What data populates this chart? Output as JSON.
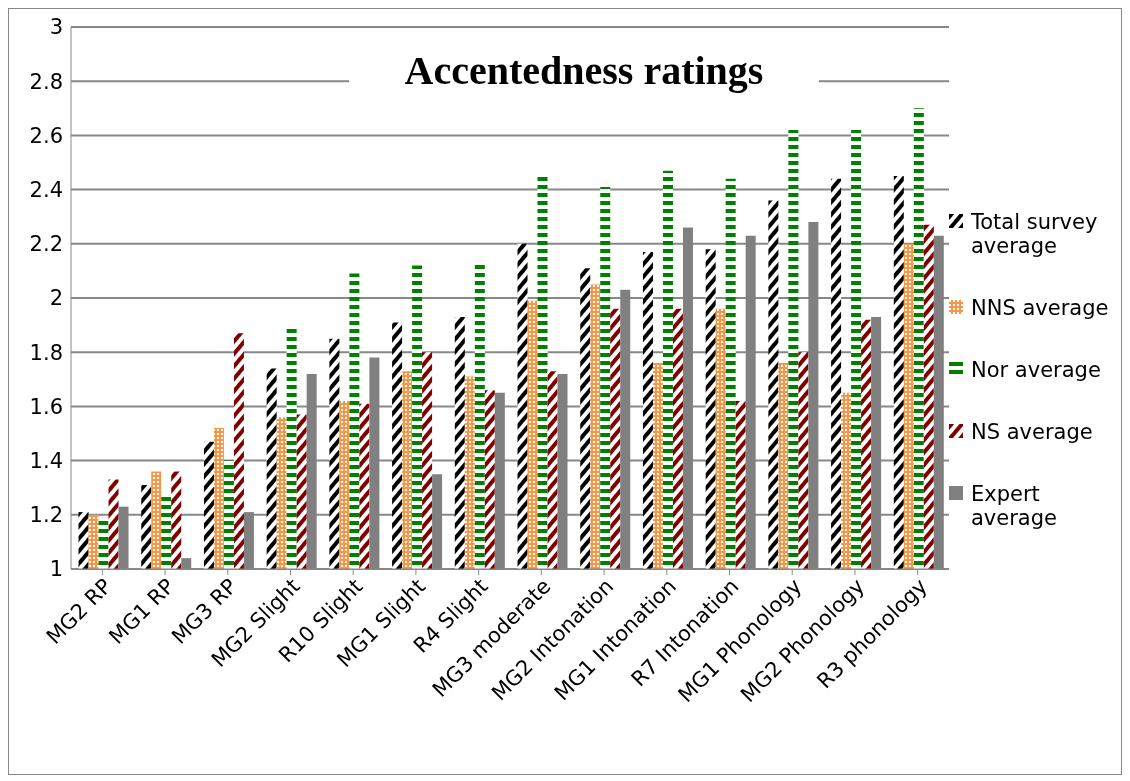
{
  "chart_data": {
    "type": "bar",
    "title": "Accentedness ratings",
    "categories": [
      "MG2 RP",
      "MG1 RP",
      "MG3 RP",
      "MG2 Slight",
      "R10 Slight",
      "MG1 Slight",
      "R4 Slight",
      "MG3 moderate",
      "MG2 Intonation",
      "MG1 Intonation",
      "R7 Intonation",
      "MG1 Phonology",
      "MG2 Phonology",
      "R3 phonology"
    ],
    "series": [
      {
        "name": "Total survey average",
        "color": "#000000",
        "values": [
          1.21,
          1.31,
          1.47,
          1.74,
          1.85,
          1.91,
          1.93,
          2.2,
          2.11,
          2.17,
          2.18,
          2.36,
          2.44,
          2.45
        ]
      },
      {
        "name": "NNS average",
        "color": "#f79646",
        "values": [
          1.2,
          1.36,
          1.52,
          1.56,
          1.62,
          1.73,
          1.71,
          1.99,
          2.05,
          1.76,
          1.96,
          1.76,
          1.65,
          2.2
        ]
      },
      {
        "name": "Nor average",
        "color": "#008000",
        "values": [
          1.19,
          1.27,
          1.4,
          1.9,
          2.09,
          2.12,
          2.13,
          2.46,
          2.41,
          2.47,
          2.44,
          2.62,
          2.62,
          2.7
        ]
      },
      {
        "name": "NS average",
        "color": "#800000",
        "values": [
          1.33,
          1.36,
          1.87,
          1.57,
          1.61,
          1.8,
          1.66,
          1.73,
          1.96,
          1.96,
          1.62,
          1.8,
          1.92,
          2.27
        ]
      },
      {
        "name": "Expert average",
        "color": "#808080",
        "values": [
          1.23,
          1.04,
          1.21,
          1.72,
          1.78,
          1.35,
          1.65,
          1.72,
          2.03,
          2.26,
          2.23,
          2.28,
          1.93,
          2.23
        ]
      }
    ],
    "ylim": [
      1,
      3
    ],
    "yticks": [
      1,
      1.2,
      1.4,
      1.6,
      1.8,
      2,
      2.2,
      2.4,
      2.6,
      2.8,
      3
    ],
    "grid": "y",
    "legend": "right"
  }
}
